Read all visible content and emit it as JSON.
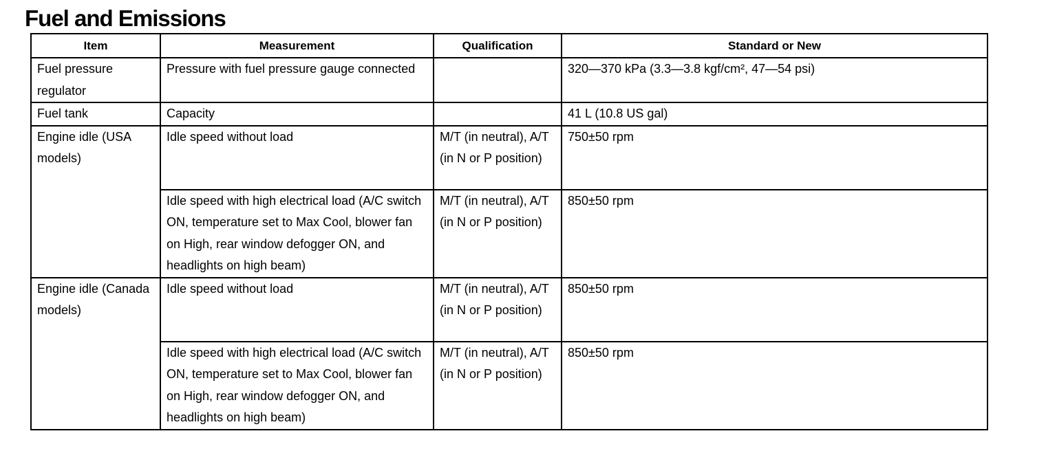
{
  "title": "Fuel and Emissions",
  "table": {
    "headers": [
      "Item",
      "Measurement",
      "Qualification",
      "Standard or New"
    ],
    "rows": [
      {
        "item": "Fuel pressure regulator",
        "measurement": "Pressure with fuel pressure gauge connected",
        "qualification": "",
        "standard": "320—370 kPa (3.3—3.8 kgf/cm², 47—54 psi)"
      },
      {
        "item": "Fuel tank",
        "measurement": "Capacity",
        "qualification": "",
        "standard": "41 L (10.8 US gal)"
      },
      {
        "item": "Engine idle (USA models)",
        "measurement": "Idle speed without load",
        "qualification": "M/T (in neutral), A/T (in N or P position)",
        "standard": "750±50 rpm"
      },
      {
        "item": "",
        "measurement": "Idle speed with high electrical load (A/C switch ON, temperature set to Max Cool, blower fan on High, rear window defogger ON, and headlights on high beam)",
        "qualification": "M/T (in neutral), A/T (in N or P position)",
        "standard": "850±50 rpm"
      },
      {
        "item": "Engine idle (Canada models)",
        "measurement": "Idle speed without load",
        "qualification": "M/T (in neutral), A/T (in N or P position)",
        "standard": "850±50 rpm"
      },
      {
        "item": "",
        "measurement": "Idle speed with high electrical load (A/C switch ON, temperature set to Max Cool, blower fan on High, rear window defogger ON, and headlights on high beam)",
        "qualification": "M/T (in neutral), A/T (in N or P position)",
        "standard": "850±50 rpm"
      }
    ]
  }
}
